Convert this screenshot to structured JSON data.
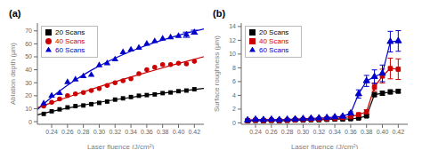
{
  "chart_data": [
    {
      "type": "scatter",
      "title": "(a)",
      "x_label": "Laser fluence (J/cm²)",
      "y_label": "Ablation depth (μm)",
      "x": [
        0.23,
        0.24,
        0.25,
        0.26,
        0.27,
        0.28,
        0.29,
        0.3,
        0.31,
        0.32,
        0.33,
        0.34,
        0.35,
        0.36,
        0.37,
        0.38,
        0.39,
        0.4,
        0.41,
        0.42
      ],
      "fit_x": [
        0.222,
        0.23,
        0.25,
        0.27,
        0.29,
        0.31,
        0.33,
        0.35,
        0.37,
        0.39,
        0.41,
        0.432
      ],
      "series": [
        {
          "name": "20 Scans",
          "color": "#000000",
          "marker": "square",
          "values": [
            6.0,
            8.0,
            9.5,
            11.0,
            12.0,
            12.5,
            13.5,
            14.5,
            15.5,
            17.0,
            18.0,
            19.0,
            20.0,
            20.5,
            21.0,
            22.0,
            22.5,
            23.5,
            24.0,
            25.0
          ],
          "fit": [
            5.3,
            6.47,
            9.19,
            11.65,
            13.89,
            15.94,
            17.83,
            19.58,
            21.21,
            22.73,
            24.15,
            25.62
          ]
        },
        {
          "name": "40 Scans",
          "color": "#cc0000",
          "marker": "circle",
          "values": [
            12.0,
            15.0,
            17.5,
            20.0,
            21.5,
            22.5,
            24.0,
            25.5,
            28.0,
            30.0,
            31.5,
            33.0,
            37.0,
            40.0,
            42.0,
            44.0,
            44.0,
            45.0,
            44.5,
            46.5
          ],
          "fit": [
            10.7,
            12.47,
            16.79,
            20.95,
            24.96,
            28.85,
            32.6,
            36.24,
            39.77,
            43.2,
            46.52,
            50.08
          ]
        },
        {
          "name": "60 Scans",
          "color": "#0000cc",
          "marker": "triangle",
          "values": [
            14.0,
            20.0,
            22.0,
            30.5,
            32.5,
            35.0,
            36.0,
            43.5,
            45.0,
            48.0,
            53.5,
            55.5,
            57.0,
            60.0,
            62.0,
            64.0,
            65.0,
            66.0,
            67.0,
            69.0
          ],
          "fit": [
            9.28,
            13.73,
            23.69,
            32.25,
            39.66,
            46.11,
            51.74,
            56.68,
            61.01,
            64.83,
            68.19,
            71.44
          ],
          "error_bars": {
            "x": [
              0.41,
              0.42
            ],
            "y": [
              67.0,
              69.0
            ],
            "values": [
              2.0,
              1.5
            ]
          }
        }
      ],
      "xlim": [
        0.222,
        0.432
      ],
      "ylim": [
        -2,
        76
      ],
      "xticks": [
        0.24,
        0.26,
        0.28,
        {
          "value": 0.3,
          "label": "0.30"
        },
        0.32,
        0.34,
        0.36,
        0.38,
        {
          "value": 0.4,
          "label": "0.40"
        },
        0.42
      ],
      "yticks": [
        0,
        10,
        20,
        30,
        40,
        50,
        60,
        70
      ],
      "grid": false,
      "legend": "upper left"
    },
    {
      "type": "line",
      "title": "(b)",
      "x_label": "Laser fluence (J/cm²)",
      "y_label": "Surface roughness (μm)",
      "x": [
        0.23,
        0.24,
        0.25,
        0.26,
        0.27,
        0.28,
        0.29,
        0.3,
        0.31,
        0.32,
        0.33,
        0.34,
        0.35,
        0.36,
        0.37,
        0.38,
        0.39,
        0.4,
        0.41,
        0.42
      ],
      "series": [
        {
          "name": "20 Scans",
          "color": "#000000",
          "marker": "square",
          "values": [
            0.3,
            0.35,
            0.3,
            0.35,
            0.3,
            0.35,
            0.4,
            0.4,
            0.45,
            0.45,
            0.5,
            0.55,
            0.55,
            0.6,
            0.7,
            1.0,
            4.1,
            4.3,
            4.5,
            4.6
          ],
          "errors": [
            0.05,
            0.05,
            0.05,
            0.05,
            0.05,
            0.05,
            0.05,
            0.05,
            0.05,
            0.05,
            0.05,
            0.05,
            0.05,
            0.08,
            0.1,
            0.15,
            0.3,
            0.3,
            0.3,
            0.25
          ]
        },
        {
          "name": "40 Scans",
          "color": "#cc0000",
          "marker": "square",
          "values": [
            0.35,
            0.4,
            0.35,
            0.4,
            0.35,
            0.4,
            0.45,
            0.5,
            0.55,
            0.55,
            0.6,
            0.65,
            0.75,
            0.9,
            1.2,
            1.6,
            5.2,
            6.8,
            7.9,
            7.8
          ],
          "errors": [
            0.05,
            0.05,
            0.05,
            0.05,
            0.05,
            0.05,
            0.05,
            0.05,
            0.05,
            0.05,
            0.05,
            0.08,
            0.1,
            0.12,
            0.2,
            0.3,
            0.6,
            1.0,
            1.5,
            1.5
          ]
        },
        {
          "name": "60 Scans",
          "color": "#0000cc",
          "marker": "triangle",
          "values": [
            0.4,
            0.5,
            0.45,
            0.5,
            0.45,
            0.5,
            0.55,
            0.6,
            0.65,
            0.7,
            0.75,
            0.85,
            0.95,
            1.4,
            4.2,
            6.1,
            6.7,
            7.2,
            11.8,
            11.9
          ],
          "errors": [
            0.05,
            0.05,
            0.05,
            0.05,
            0.05,
            0.05,
            0.05,
            0.05,
            0.05,
            0.05,
            0.08,
            0.1,
            0.12,
            0.2,
            0.6,
            0.8,
            1.0,
            1.2,
            1.5,
            1.5
          ]
        }
      ],
      "xlim": [
        0.222,
        0.432
      ],
      "ylim": [
        -0.2,
        14.5
      ],
      "xticks": [
        0.24,
        0.26,
        0.28,
        {
          "value": 0.3,
          "label": "0.30"
        },
        0.32,
        0.34,
        0.36,
        0.38,
        {
          "value": 0.4,
          "label": "0.40"
        },
        0.42
      ],
      "yticks": [
        0,
        2,
        4,
        6,
        8,
        10,
        12,
        14
      ],
      "grid": false,
      "legend": "upper left"
    }
  ]
}
